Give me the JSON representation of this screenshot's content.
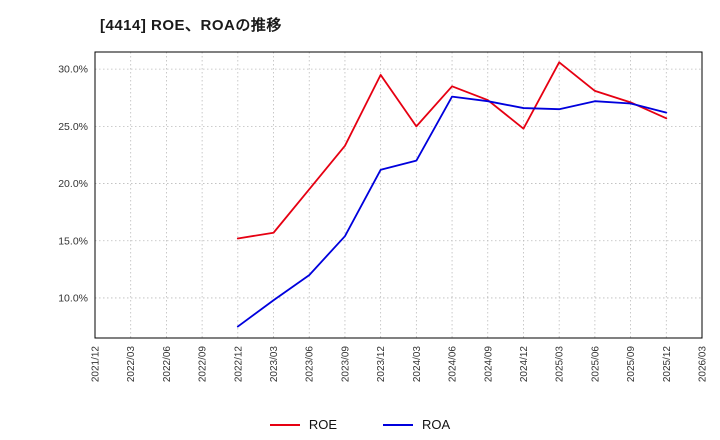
{
  "chart_data": {
    "type": "line",
    "title": "[4414]  ROE、ROAの推移",
    "x_labels": [
      "2021/12",
      "2022/03",
      "2022/06",
      "2022/09",
      "2022/12",
      "2023/03",
      "2023/06",
      "2023/09",
      "2023/12",
      "2024/03",
      "2024/06",
      "2024/09",
      "2024/12",
      "2025/03",
      "2025/06",
      "2025/09",
      "2025/12",
      "2026/03"
    ],
    "yticks": [
      10.0,
      15.0,
      20.0,
      25.0,
      30.0
    ],
    "ylim": [
      6.5,
      31.5
    ],
    "grid": true,
    "legend_position": "bottom",
    "series": [
      {
        "name": "ROE",
        "color": "#e60012",
        "values": [
          null,
          null,
          null,
          null,
          15.2,
          15.7,
          19.5,
          23.3,
          29.5,
          25.0,
          28.5,
          27.3,
          24.8,
          30.6,
          28.1,
          27.1,
          25.7,
          null
        ]
      },
      {
        "name": "ROA",
        "color": "#0000dd",
        "values": [
          null,
          null,
          null,
          null,
          7.5,
          9.8,
          12.0,
          15.4,
          21.2,
          22.0,
          27.6,
          27.2,
          26.6,
          26.5,
          27.2,
          27.0,
          26.2,
          null
        ]
      }
    ],
    "axis_color": "#000000",
    "grid_color": "#bbbbbb",
    "tick_label_color": "#333333"
  }
}
